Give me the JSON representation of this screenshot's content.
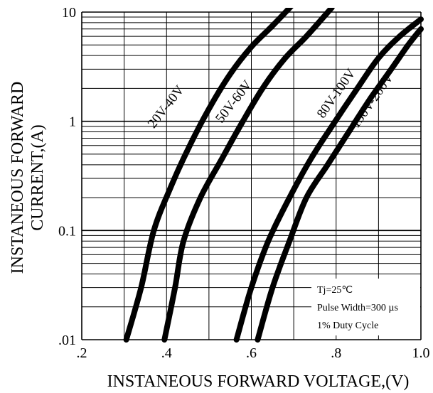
{
  "chart_data": {
    "type": "line",
    "xlabel": "INSTANEOUS FORWARD VOLTAGE,(V)",
    "ylabel_lines": [
      "INSTANEOUS FORWARD",
      "CURRENT,(A)"
    ],
    "xlim": [
      0.2,
      1.0
    ],
    "ylim": [
      0.01,
      10
    ],
    "yscale": "log",
    "grid": true,
    "x_ticks": [
      {
        "value": 0.2,
        "label": ".2"
      },
      {
        "value": 0.4,
        "label": ".4"
      },
      {
        "value": 0.6,
        "label": ".6"
      },
      {
        "value": 0.8,
        "label": ".8"
      },
      {
        "value": 1.0,
        "label": "1.0"
      }
    ],
    "y_ticks": [
      {
        "value": 10,
        "label": "10"
      },
      {
        "value": 1,
        "label": "1"
      },
      {
        "value": 0.1,
        "label": "0.1"
      },
      {
        "value": 0.01,
        "label": ".01"
      }
    ],
    "series": [
      {
        "name": "20V-40V",
        "x": [
          0.305,
          0.34,
          0.37,
          0.41,
          0.45,
          0.5,
          0.55,
          0.6,
          0.65,
          0.7
        ],
        "y": [
          0.01,
          0.03,
          0.1,
          0.25,
          0.55,
          1.3,
          2.7,
          4.8,
          7.5,
          12
        ]
      },
      {
        "name": "50V-60V",
        "x": [
          0.395,
          0.42,
          0.44,
          0.48,
          0.53,
          0.58,
          0.63,
          0.68,
          0.73,
          0.79
        ],
        "y": [
          0.01,
          0.03,
          0.08,
          0.2,
          0.45,
          1.0,
          2.1,
          3.8,
          6.0,
          11
        ]
      },
      {
        "name": "80V-100V",
        "x": [
          0.565,
          0.6,
          0.64,
          0.69,
          0.74,
          0.79,
          0.85,
          0.9,
          0.95,
          1.0
        ],
        "y": [
          0.01,
          0.03,
          0.08,
          0.2,
          0.45,
          0.9,
          2.0,
          3.8,
          6.0,
          8.6
        ]
      },
      {
        "name": "150V-200V",
        "x": [
          0.615,
          0.65,
          0.69,
          0.73,
          0.78,
          0.83,
          0.88,
          0.93,
          0.97,
          1.0
        ],
        "y": [
          0.01,
          0.03,
          0.08,
          0.2,
          0.4,
          0.8,
          1.6,
          3.0,
          5.0,
          7.0
        ]
      }
    ],
    "annotations": {
      "temp": "Tj=25℃",
      "pulse": "Pulse Width=300 µs",
      "duty": "1% Duty Cycle"
    }
  }
}
